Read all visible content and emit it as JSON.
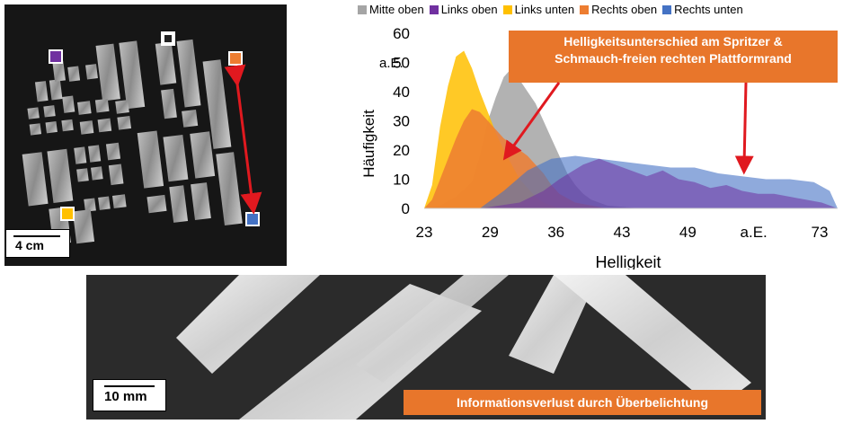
{
  "chart_data": {
    "type": "area",
    "xlabel": "Helligkeit",
    "ylabel": "Häufigkeit",
    "y_unit_label": "a.E.",
    "x_tick_labels": [
      "23",
      "29",
      "36",
      "43",
      "49",
      "a.E.",
      "73"
    ],
    "y_ticks": [
      0,
      10,
      20,
      30,
      40,
      50,
      60
    ],
    "xlim": [
      23,
      75
    ],
    "ylim": [
      0,
      60
    ],
    "legend_position": "top",
    "series": [
      {
        "name": "Mitte oben",
        "color": "#a5a5a5",
        "x": [
          23,
          25,
          27,
          29,
          30,
          31,
          32,
          33,
          34,
          35,
          36,
          37,
          38,
          39,
          40,
          41,
          42,
          43,
          44,
          46,
          48,
          50
        ],
        "y": [
          0,
          1,
          4,
          9,
          18,
          30,
          38,
          45,
          48,
          44,
          40,
          36,
          30,
          24,
          18,
          12,
          8,
          5,
          3,
          1,
          0.5,
          0
        ]
      },
      {
        "name": "Links oben",
        "color": "#7030a0",
        "x": [
          30,
          35,
          38,
          40,
          43,
          45,
          47,
          49,
          51,
          53,
          55,
          57,
          59,
          61,
          63,
          65,
          67,
          69,
          71,
          73,
          74,
          75
        ],
        "y": [
          0,
          2,
          6,
          10,
          15,
          17,
          15,
          13,
          11,
          13,
          10,
          9,
          7,
          8,
          6,
          5,
          5,
          4,
          3,
          2,
          1,
          0
        ]
      },
      {
        "name": "Links unten",
        "color": "#ffc000",
        "x": [
          23,
          24,
          25,
          26,
          27,
          28,
          29,
          30,
          31,
          32,
          33,
          34,
          35,
          36,
          37,
          38,
          39,
          40
        ],
        "y": [
          0,
          8,
          28,
          42,
          52,
          54,
          48,
          40,
          33,
          26,
          20,
          15,
          10,
          7,
          4,
          2,
          1,
          0
        ]
      },
      {
        "name": "Rechts oben",
        "color": "#ed7d31",
        "x": [
          23,
          24,
          25,
          26,
          27,
          28,
          29,
          30,
          31,
          32,
          33,
          34,
          35,
          36,
          37,
          38,
          39,
          40,
          42,
          44,
          46
        ],
        "y": [
          0,
          3,
          10,
          17,
          24,
          30,
          34,
          33,
          30,
          27,
          24,
          22,
          20,
          18,
          15,
          12,
          8,
          5,
          2,
          1,
          0
        ]
      },
      {
        "name": "Rechts unten",
        "color": "#4472c4",
        "x": [
          30,
          33,
          36,
          39,
          42,
          45,
          48,
          51,
          54,
          57,
          60,
          63,
          66,
          69,
          72,
          74,
          75
        ],
        "y": [
          0,
          6,
          13,
          17,
          18,
          17,
          16,
          15,
          14,
          14,
          12,
          11,
          10,
          10,
          9,
          6,
          0
        ]
      }
    ]
  },
  "annotations": {
    "chart_callout": "Helligkeitsunterschied am Spritzer & Schmauch-freien rechten Plattformrand",
    "chart_callout_line1": "Helligkeitsunterschied am Spritzer &",
    "chart_callout_line2": "Schmauch-freien rechten Plattformrand",
    "bottom_callout": "Informationsverlust durch Überbelichtung"
  },
  "photos": {
    "top_scale": "4 cm",
    "bottom_scale": "10 mm"
  },
  "marker_colors": {
    "links_oben": "#7030a0",
    "mitte_oben": "#ffffff",
    "rechts_oben": "#ed7d31",
    "links_unten": "#ffc000",
    "rechts_unten": "#4472c4",
    "arrow": "#e0191f"
  }
}
